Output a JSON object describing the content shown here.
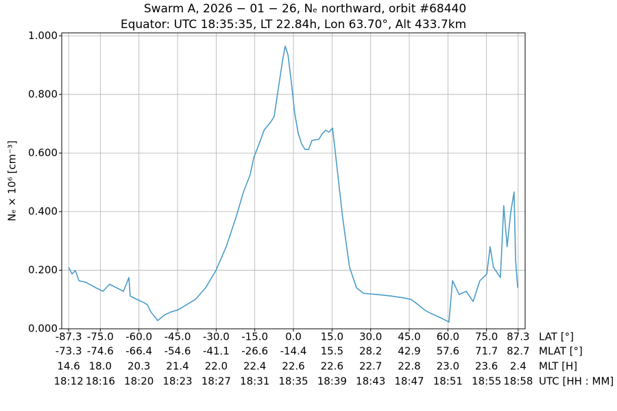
{
  "chart_data": {
    "type": "line",
    "title": "Swarm A,  2026 − 01 − 26,  Nₑ northward,  orbit #68440",
    "subtitle": "Equator:  UTC 18:35:35,  LT 22.84h,  Lon 63.70°,  Alt 433.7km",
    "ylabel": "Nₑ × 10⁶ [cm⁻³]",
    "xlabel": "LAT [°]",
    "color": "#4a9bc8",
    "grid": true,
    "xlim": [
      -90,
      90
    ],
    "ylim": [
      0,
      1.01
    ],
    "xticks": [
      {
        "value": -87.3,
        "label": "-87.3"
      },
      {
        "value": -75,
        "label": "-75.0"
      },
      {
        "value": -60,
        "label": "-60.0"
      },
      {
        "value": -45,
        "label": "-45.0"
      },
      {
        "value": -30,
        "label": "-30.0"
      },
      {
        "value": -15,
        "label": "-15.0"
      },
      {
        "value": 0,
        "label": "0.0"
      },
      {
        "value": 15,
        "label": "15.0"
      },
      {
        "value": 30,
        "label": "30.0"
      },
      {
        "value": 45,
        "label": "45.0"
      },
      {
        "value": 60,
        "label": "60.0"
      },
      {
        "value": 75,
        "label": "75.0"
      },
      {
        "value": 87.3,
        "label": "87.3"
      }
    ],
    "yticks": [
      {
        "value": 0,
        "label": "0.000"
      },
      {
        "value": 0.2,
        "label": "0.200"
      },
      {
        "value": 0.4,
        "label": "0.400"
      },
      {
        "value": 0.6,
        "label": "0.600"
      },
      {
        "value": 0.8,
        "label": "0.800"
      },
      {
        "value": 1,
        "label": "1.000"
      }
    ],
    "extra_tick_rows": [
      {
        "label": "MLAT [°]",
        "ticks": [
          "-73.3",
          "-74.6",
          "-66.4",
          "-54.6",
          "-41.1",
          "-26.6",
          "-14.4",
          "15.5",
          "28.2",
          "42.9",
          "57.6",
          "71.7",
          "82.7"
        ]
      },
      {
        "label": "MLT [H]",
        "ticks": [
          "14.6",
          "18.0",
          "20.3",
          "21.4",
          "22.0",
          "22.4",
          "22.6",
          "22.6",
          "22.7",
          "22.8",
          "23.0",
          "23.6",
          "2.4"
        ]
      },
      {
        "label": "UTC [HH : MM]",
        "ticks": [
          "18:12",
          "18:16",
          "18:20",
          "18:23",
          "18:27",
          "18:31",
          "18:35",
          "18:39",
          "18:43",
          "18:47",
          "18:51",
          "18:55",
          "18:58"
        ]
      }
    ],
    "x": [
      -87.3,
      -86.0,
      -84.7,
      -83.3,
      -80.7,
      -76.7,
      -74.0,
      -71.4,
      -68.7,
      -66.0,
      -63.9,
      -63.4,
      -60.7,
      -58.0,
      -56.7,
      -55.4,
      -52.7,
      -50.1,
      -47.4,
      -44.7,
      -42.1,
      -38.1,
      -34.1,
      -30.1,
      -26.1,
      -22.1,
      -19.4,
      -16.8,
      -15.4,
      -12.8,
      -11.4,
      -8.8,
      -7.5,
      -6.1,
      -4.3,
      -3.2,
      -2.1,
      -0.8,
      0.5,
      1.9,
      3.2,
      4.5,
      5.9,
      7.2,
      9.9,
      11.2,
      12.5,
      13.8,
      15.2,
      16.5,
      19.2,
      21.8,
      24.5,
      27.2,
      32.5,
      37.8,
      43.1,
      45.8,
      48.5,
      51.1,
      53.8,
      57.8,
      60.4,
      61.8,
      64.4,
      67.1,
      69.8,
      72.4,
      75.1,
      76.4,
      77.7,
      80.4,
      81.7,
      83.0,
      84.4,
      85.7,
      86.3,
      87.1
    ],
    "values": [
      0.21,
      0.187,
      0.199,
      0.164,
      0.159,
      0.14,
      0.128,
      0.152,
      0.14,
      0.128,
      0.175,
      0.112,
      0.1,
      0.089,
      0.082,
      0.058,
      0.028,
      0.047,
      0.058,
      0.065,
      0.079,
      0.1,
      0.14,
      0.199,
      0.28,
      0.386,
      0.467,
      0.526,
      0.584,
      0.643,
      0.678,
      0.706,
      0.724,
      0.806,
      0.911,
      0.965,
      0.935,
      0.841,
      0.736,
      0.666,
      0.631,
      0.612,
      0.612,
      0.643,
      0.647,
      0.666,
      0.678,
      0.671,
      0.685,
      0.584,
      0.374,
      0.21,
      0.14,
      0.121,
      0.117,
      0.112,
      0.105,
      0.1,
      0.082,
      0.063,
      0.051,
      0.035,
      0.023,
      0.164,
      0.117,
      0.128,
      0.093,
      0.164,
      0.187,
      0.28,
      0.21,
      0.175,
      0.42,
      0.28,
      0.397,
      0.467,
      0.234,
      0.14
    ]
  }
}
